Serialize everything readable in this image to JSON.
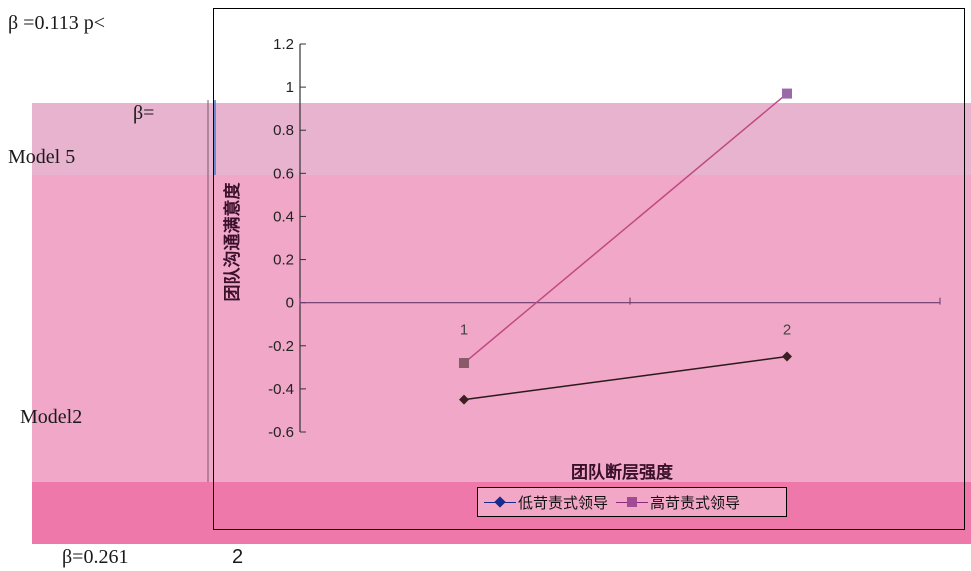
{
  "page_text": {
    "top_beta": "β =0.113   p<",
    "beta_eq": "β=",
    "model5": "Model 5",
    "model2": "Model2",
    "bottom_beta": "β=0.261",
    "bottom_num": "2"
  },
  "colors": {
    "band_light": "#e8b3cf",
    "band_mid": "#f0a7c8",
    "band_dark": "#ee78a9",
    "low_series": "#1a2a8a",
    "high_series": "#a24a92"
  },
  "chart_data": {
    "type": "line",
    "title": "",
    "xlabel": "团队断层强度",
    "ylabel": "团队沟通满意度",
    "categories": [
      "1",
      "2"
    ],
    "y_ticks": [
      "1.2",
      "1",
      "0.8",
      "0.6",
      "0.4",
      "0.2",
      "0",
      "-0.2",
      "-0.4",
      "-0.6"
    ],
    "ylim": [
      -0.6,
      1.2
    ],
    "legend_position": "bottom",
    "series": [
      {
        "name": "低苛责式领导",
        "marker": "diamond",
        "values": [
          -0.45,
          -0.25
        ]
      },
      {
        "name": "高苛责式领导",
        "marker": "square",
        "values": [
          -0.28,
          0.97
        ]
      }
    ]
  }
}
